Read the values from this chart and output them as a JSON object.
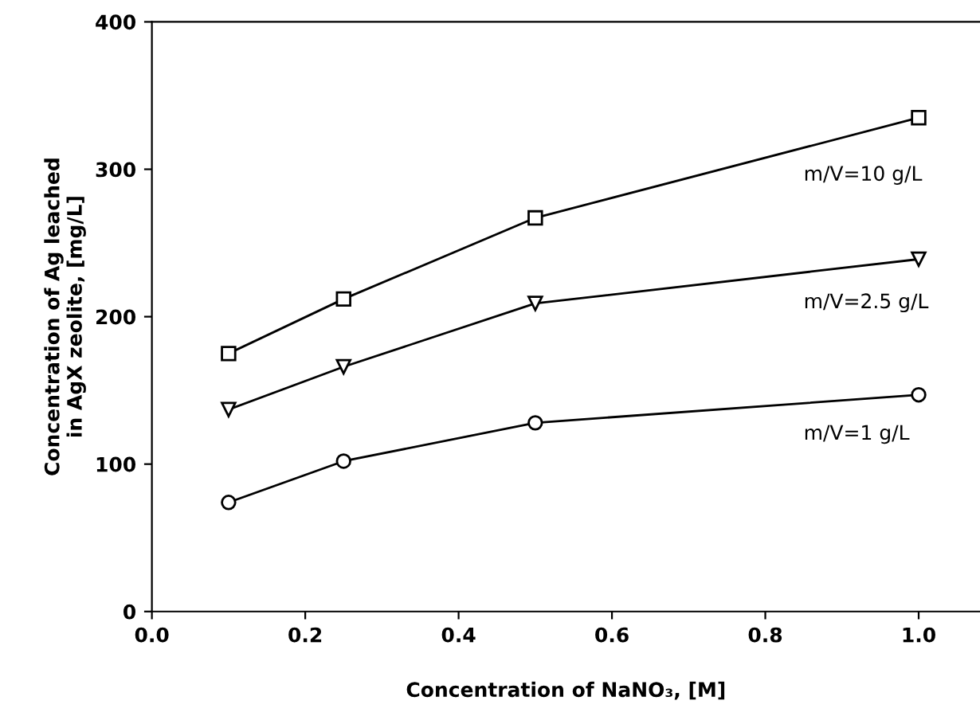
{
  "chart_data": {
    "type": "line",
    "xlabel": "Concentration of NaNO₃, [M]",
    "ylabel": "Concentration of Ag leached\nin AgX zeolite, [mg/L]",
    "x": [
      0.1,
      0.25,
      0.5,
      1.0
    ],
    "series": [
      {
        "name": "m/V=10 g/L",
        "color": "#000000",
        "marker": "square",
        "values": [
          175,
          212,
          267,
          335
        ]
      },
      {
        "name": "m/V=2.5 g/L",
        "color": "#000000",
        "marker": "triangle",
        "values": [
          137,
          166,
          209,
          239
        ]
      },
      {
        "name": "m/V=1 g/L",
        "color": "#000000",
        "marker": "circle",
        "values": [
          74,
          102,
          128,
          147
        ]
      }
    ],
    "xlim": [
      0.0,
      1.08
    ],
    "xticks": [
      {
        "value": 0.0,
        "label": "0.0"
      },
      {
        "value": 0.2,
        "label": "0.2"
      },
      {
        "value": 0.4,
        "label": "0.4"
      },
      {
        "value": 0.6,
        "label": "0.6"
      },
      {
        "value": 0.8,
        "label": "0.8"
      },
      {
        "value": 1.0,
        "label": "1.0"
      }
    ],
    "ylim": [
      0,
      400
    ],
    "yticks": [
      0,
      100,
      200,
      300,
      400
    ],
    "grid": false,
    "legend": false,
    "line_style": "solid"
  }
}
